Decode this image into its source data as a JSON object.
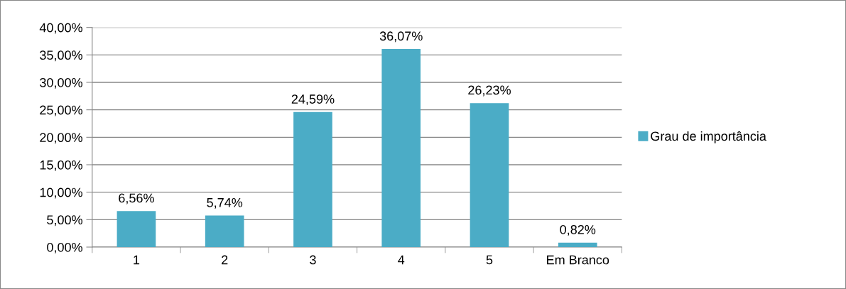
{
  "chart_data": {
    "type": "bar",
    "categories": [
      "1",
      "2",
      "3",
      "4",
      "5",
      "Em Branco"
    ],
    "series": [
      {
        "name": "Grau de importância",
        "color": "#4bacc6",
        "values": [
          6.56,
          5.74,
          24.59,
          36.07,
          26.23,
          0.82
        ],
        "value_labels": [
          "6,56%",
          "5,74%",
          "24,59%",
          "36,07%",
          "26,23%",
          "0,82%"
        ]
      }
    ],
    "ylim": [
      0,
      40
    ],
    "yticks": [
      {
        "value": 0,
        "label": "0,00%"
      },
      {
        "value": 5,
        "label": "5,00%"
      },
      {
        "value": 10,
        "label": "10,00%"
      },
      {
        "value": 15,
        "label": "15,00%"
      },
      {
        "value": 20,
        "label": "20,00%"
      },
      {
        "value": 25,
        "label": "25,00%"
      },
      {
        "value": 30,
        "label": "30,00%"
      },
      {
        "value": 35,
        "label": "35,00%"
      },
      {
        "value": 40,
        "label": "40,00%"
      }
    ],
    "grid": "y",
    "legend": "right"
  }
}
